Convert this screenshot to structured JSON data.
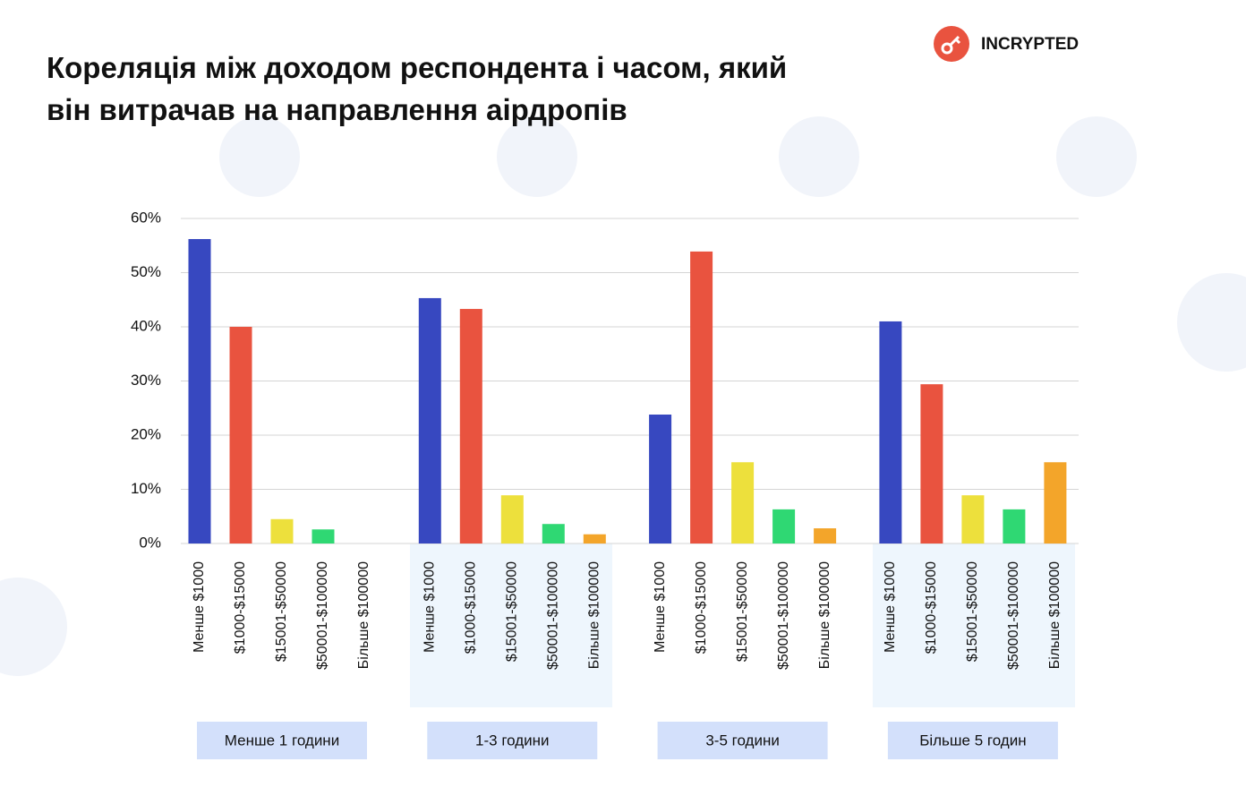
{
  "brand": "INCRYPTED",
  "chart_data": {
    "type": "bar",
    "title": [
      "Кореляція між доходом респондента і часом, який",
      "він витрачав на направлення аірдропів"
    ],
    "categories": [
      "Менше 1 години",
      "1-3 години",
      "3-5 години",
      "Більше 5 годин"
    ],
    "series": [
      {
        "name": "Менше $1000",
        "color": "#3748c0",
        "values": [
          56.2,
          45.3,
          23.8,
          41
        ]
      },
      {
        "name": "$1000-$15000",
        "color": "#e9533f",
        "values": [
          40,
          43.3,
          53.9,
          29.4
        ]
      },
      {
        "name": "$15001-$50000",
        "color": "#ede03c",
        "values": [
          4.5,
          8.9,
          15,
          8.9
        ]
      },
      {
        "name": "$50001-$100000",
        "color": "#2fd873",
        "values": [
          2.6,
          3.6,
          6.3,
          6.3
        ]
      },
      {
        "name": "Більше $100000",
        "color": "#f3a52a",
        "values": [
          0,
          1.7,
          2.8,
          15
        ]
      }
    ],
    "ylim": [
      0,
      60
    ],
    "yticks": [
      {
        "value": 0,
        "label": "0%"
      },
      {
        "value": 10,
        "label": "10%"
      },
      {
        "value": 20,
        "label": "20%"
      },
      {
        "value": 30,
        "label": "30%"
      },
      {
        "value": 40,
        "label": "40%"
      },
      {
        "value": 50,
        "label": "50%"
      },
      {
        "value": 60,
        "label": "60%"
      }
    ],
    "grid": true
  }
}
